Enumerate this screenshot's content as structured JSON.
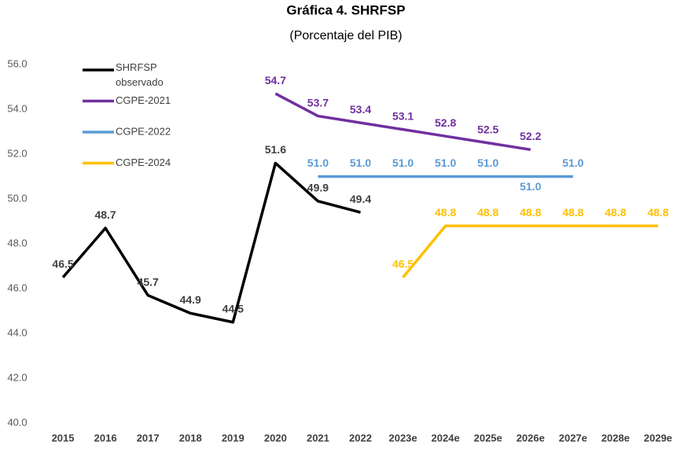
{
  "chart_data": {
    "type": "line",
    "title": "Gráfica 4. SHRFSP",
    "subtitle": "(Porcentaje del PIB)",
    "categories": [
      "2015",
      "2016",
      "2017",
      "2018",
      "2019",
      "2020",
      "2021",
      "2022",
      "2023e",
      "2024e",
      "2025e",
      "2026e",
      "2027e",
      "2028e",
      "2029e"
    ],
    "series": [
      {
        "name": "SHRFSP observado",
        "color": "#000000",
        "values": [
          46.5,
          48.7,
          45.7,
          44.9,
          44.5,
          51.6,
          49.9,
          49.4,
          null,
          null,
          null,
          null,
          null,
          null,
          null
        ]
      },
      {
        "name": "CGPE-2021",
        "color": "#7030a0",
        "values": [
          null,
          null,
          null,
          null,
          null,
          54.7,
          53.7,
          53.4,
          53.1,
          52.8,
          52.5,
          52.2,
          null,
          null,
          null
        ]
      },
      {
        "name": "CGPE-2022",
        "color": "#5b9bd5",
        "values": [
          null,
          null,
          null,
          null,
          null,
          null,
          51,
          51,
          51,
          51,
          51,
          51,
          51,
          null,
          null
        ],
        "value_labels": [
          null,
          null,
          null,
          null,
          null,
          null,
          "51.0",
          "51.0",
          "51.0",
          "51.0",
          "51.0",
          "51.0",
          "51.0",
          null,
          null
        ]
      },
      {
        "name": "CGPE-2024",
        "color": "#ffc000",
        "values": [
          null,
          null,
          null,
          null,
          null,
          null,
          null,
          null,
          46.5,
          48.8,
          48.8,
          48.8,
          48.8,
          48.8,
          48.8
        ]
      }
    ],
    "ylim": [
      40,
      56
    ],
    "yticks": [
      {
        "value": 40,
        "label": "40.0"
      },
      {
        "value": 42,
        "label": "42.0"
      },
      {
        "value": 44,
        "label": "44.0"
      },
      {
        "value": 46,
        "label": "46.0"
      },
      {
        "value": 48,
        "label": "48.0"
      },
      {
        "value": 50,
        "label": "50.0"
      },
      {
        "value": 52,
        "label": "52.0"
      },
      {
        "value": 54,
        "label": "54.0"
      },
      {
        "value": 56,
        "label": "56.0"
      }
    ],
    "grid": false
  }
}
